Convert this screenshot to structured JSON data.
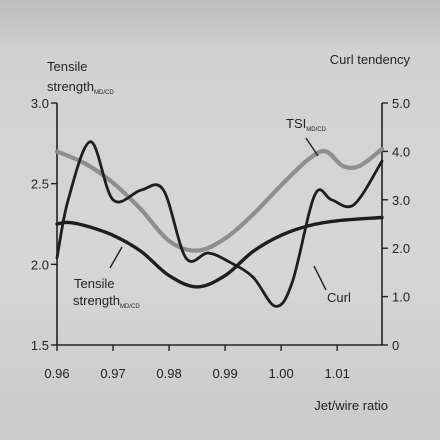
{
  "chart_data": {
    "type": "line",
    "xlabel": "Jet/wire ratio",
    "ylabel_left_main": "Tensile",
    "ylabel_left_line2": "strength",
    "ylabel_left_sub": "MD/CD",
    "ylabel_right": "Curl tendency",
    "xlim": [
      0.96,
      1.018
    ],
    "ylim_left": [
      1.5,
      3.0
    ],
    "ylim_right": [
      0,
      5.0
    ],
    "x_ticks": [
      0.96,
      0.97,
      0.98,
      0.99,
      1.0,
      1.01
    ],
    "x_tick_labels": [
      "0.96",
      "0.97",
      "0.98",
      "0.99",
      "1.00",
      "1.01"
    ],
    "y_left_ticks": [
      1.5,
      2.0,
      2.5,
      3.0
    ],
    "y_left_tick_labels": [
      "1.5",
      "2.0",
      "2.5",
      "3.0"
    ],
    "y_right_ticks": [
      0,
      1.0,
      2.0,
      3.0,
      4.0,
      5.0
    ],
    "y_right_tick_labels": [
      "0",
      "1.0",
      "2.0",
      "3.0",
      "4.0",
      "5.0"
    ],
    "grid": false,
    "series": [
      {
        "id": "tsi",
        "label_main": "TSI",
        "label_sub": "MD/CD",
        "axis": "right",
        "color": "#8e8e8e",
        "x": [
          0.96,
          0.965,
          0.97,
          0.975,
          0.98,
          0.985,
          0.99,
          0.995,
          1.0,
          1.005,
          1.008,
          1.011,
          1.014,
          1.018
        ],
        "y": [
          4.0,
          3.75,
          3.35,
          2.8,
          2.15,
          1.95,
          2.2,
          2.7,
          3.3,
          3.85,
          4.0,
          3.7,
          3.7,
          4.05
        ]
      },
      {
        "id": "tensile",
        "label_main": "Tensile",
        "label_line2": "strength",
        "label_sub": "MD/CD",
        "axis": "left",
        "color": "#1e1e1e",
        "x": [
          0.96,
          0.962,
          0.965,
          0.97,
          0.975,
          0.98,
          0.985,
          0.99,
          0.995,
          1.0,
          1.005,
          1.01,
          1.018
        ],
        "y": [
          2.25,
          2.26,
          2.24,
          2.18,
          2.08,
          1.93,
          1.86,
          1.93,
          2.08,
          2.18,
          2.24,
          2.27,
          2.29
        ]
      },
      {
        "id": "curl",
        "label_main": "Curl",
        "axis": "right",
        "color": "#1e1e1e",
        "x": [
          0.96,
          0.962,
          0.966,
          0.97,
          0.975,
          0.979,
          0.983,
          0.987,
          0.991,
          0.995,
          0.999,
          1.002,
          1.006,
          1.009,
          1.013,
          1.018
        ],
        "y": [
          1.8,
          3.0,
          4.2,
          3.0,
          3.2,
          3.2,
          1.8,
          1.9,
          1.7,
          1.4,
          0.8,
          1.3,
          3.1,
          3.0,
          2.9,
          3.8
        ]
      }
    ]
  }
}
